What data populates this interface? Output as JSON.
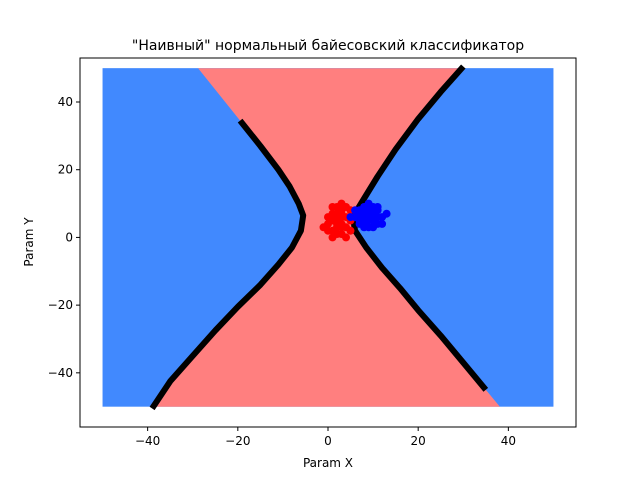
{
  "chart_data": {
    "type": "scatter",
    "title": "\"Наивный\" нормальный байесовский классификатор",
    "xlabel": "Param X",
    "ylabel": "Param Y",
    "xlim": [
      -55,
      55
    ],
    "ylim": [
      -56,
      53
    ],
    "xticks": [
      -40,
      -20,
      0,
      20,
      40
    ],
    "yticks": [
      -40,
      -20,
      0,
      20,
      40
    ],
    "xtick_labels": [
      "−40",
      "−20",
      "0",
      "20",
      "40"
    ],
    "ytick_labels": [
      "−40",
      "−20",
      "0",
      "20",
      "40"
    ],
    "grid": false,
    "grid_region": {
      "x_range": [
        -50,
        50
      ],
      "y_range": [
        -50,
        50
      ],
      "class_colors": {
        "class_0": "#ff7f7f",
        "class_1": "#4189fe"
      }
    },
    "decision_boundary": {
      "color": "#000000",
      "left_branch": [
        [
          -19.5,
          34.5
        ],
        [
          -15,
          27
        ],
        [
          -11,
          20
        ],
        [
          -8.5,
          15
        ],
        [
          -6.5,
          10
        ],
        [
          -5.5,
          6.5
        ],
        [
          -6,
          2
        ],
        [
          -8,
          -3
        ],
        [
          -11,
          -8
        ],
        [
          -15,
          -14
        ],
        [
          -20,
          -20.5
        ],
        [
          -25,
          -27.5
        ],
        [
          -30,
          -35
        ],
        [
          -35,
          -42.5
        ],
        [
          -39,
          -50.5
        ]
      ],
      "right_branch": [
        [
          30,
          50.5
        ],
        [
          25,
          43
        ],
        [
          20,
          35
        ],
        [
          15,
          26
        ],
        [
          11,
          18
        ],
        [
          8,
          11.5
        ],
        [
          5.5,
          6
        ],
        [
          6,
          2
        ],
        [
          8.5,
          -3
        ],
        [
          12,
          -9
        ],
        [
          16,
          -15
        ],
        [
          20,
          -21.5
        ],
        [
          25,
          -29
        ],
        [
          30,
          -37
        ],
        [
          35,
          -45
        ]
      ]
    },
    "series": [
      {
        "color": "#ff0000",
        "points": [
          [
            1,
            2
          ],
          [
            2,
            5
          ],
          [
            3,
            8
          ],
          [
            2,
            3
          ],
          [
            4,
            6
          ],
          [
            1,
            7
          ],
          [
            3,
            1
          ],
          [
            0,
            4
          ],
          [
            2,
            9
          ],
          [
            4,
            3
          ],
          [
            1,
            0
          ],
          [
            3,
            6
          ],
          [
            5,
            5
          ],
          [
            2,
            1
          ],
          [
            -1,
            3
          ],
          [
            4,
            9
          ],
          [
            3,
            4
          ],
          [
            1,
            5
          ],
          [
            0,
            2
          ],
          [
            2,
            7
          ],
          [
            5,
            2
          ],
          [
            3,
            10
          ],
          [
            1,
            9
          ],
          [
            4,
            0
          ],
          [
            2,
            4
          ],
          [
            3,
            3
          ],
          [
            0,
            6
          ],
          [
            5,
            8
          ],
          [
            2,
            6
          ],
          [
            3,
            7
          ]
        ]
      },
      {
        "color": "#0000ff",
        "points": [
          [
            8,
            6
          ],
          [
            9,
            5
          ],
          [
            10,
            7
          ],
          [
            7,
            8
          ],
          [
            8,
            4
          ],
          [
            9,
            8
          ],
          [
            10,
            5
          ],
          [
            11,
            6
          ],
          [
            7,
            5
          ],
          [
            8,
            9
          ],
          [
            9,
            3
          ],
          [
            10,
            9
          ],
          [
            11,
            8
          ],
          [
            6,
            6
          ],
          [
            7,
            7
          ],
          [
            9,
            6
          ],
          [
            12,
            6
          ],
          [
            8,
            7
          ],
          [
            10,
            3
          ],
          [
            9,
            10
          ],
          [
            7,
            4
          ],
          [
            11,
            4
          ],
          [
            13,
            7
          ],
          [
            6,
            8
          ],
          [
            8,
            3
          ],
          [
            10,
            6
          ],
          [
            9,
            7
          ],
          [
            5,
            6
          ],
          [
            11,
            9
          ],
          [
            12,
            4
          ]
        ]
      }
    ]
  }
}
